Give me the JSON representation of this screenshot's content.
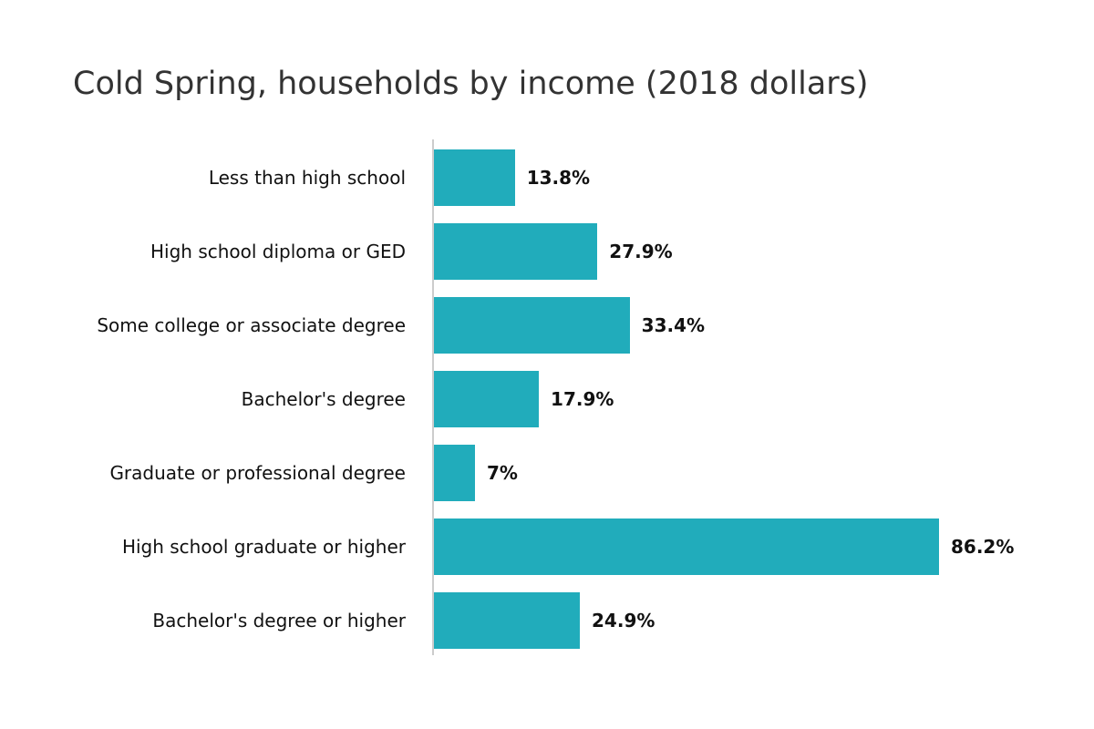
{
  "chart_data": {
    "type": "bar",
    "orientation": "horizontal",
    "title": "Cold Spring, households by income (2018 dollars)",
    "categories": [
      "Less than high school",
      "High school diploma or GED",
      "Some college or associate degree",
      "Bachelor's degree",
      "Graduate or professional degree",
      "High school graduate or higher",
      "Bachelor's degree or higher"
    ],
    "values": [
      13.8,
      27.9,
      33.4,
      17.9,
      7,
      86.2,
      24.9
    ],
    "value_labels": [
      "13.8%",
      "27.9%",
      "33.4%",
      "17.9%",
      "7%",
      "86.2%",
      "24.9%"
    ],
    "color": "#21acbb"
  }
}
